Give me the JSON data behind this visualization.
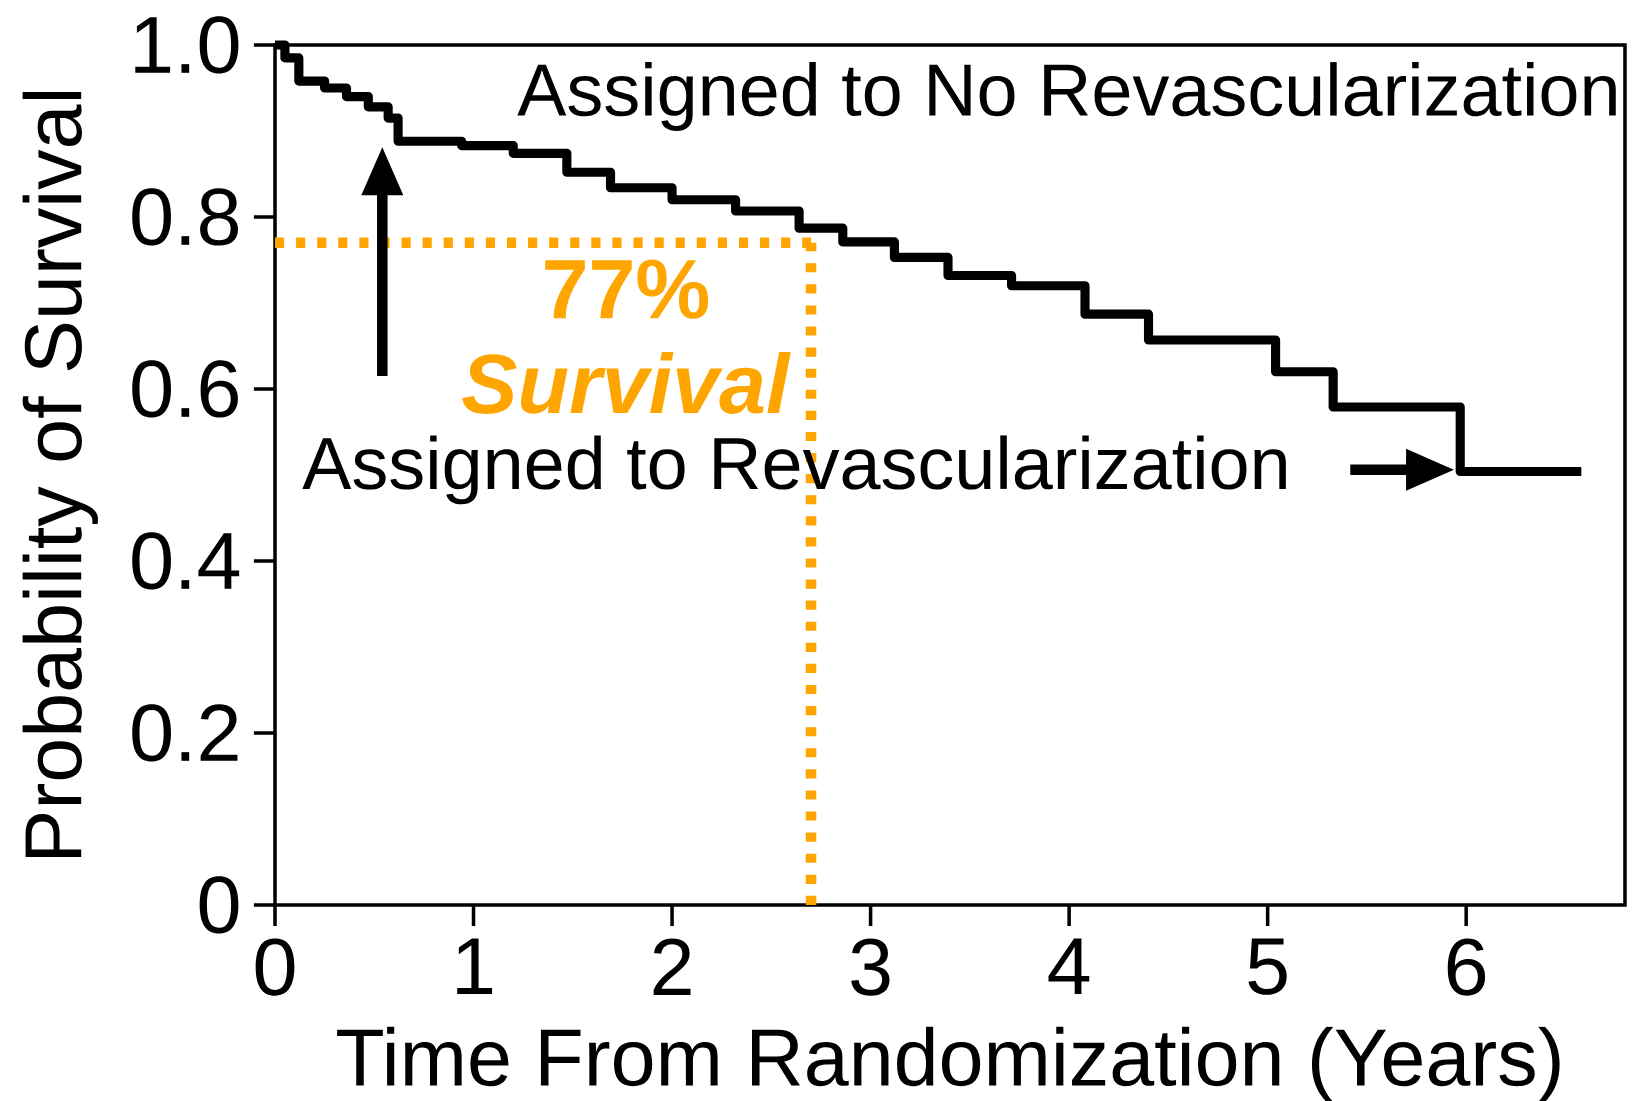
{
  "chart_data": {
    "type": "step",
    "xlabel": "Time From Randomization (Years)",
    "ylabel": "Probability of Survival",
    "xlim": [
      0,
      6.8
    ],
    "ylim": [
      0,
      1
    ],
    "xticks": [
      0,
      1,
      2,
      3,
      4,
      5,
      6
    ],
    "yticks": [
      0,
      0.2,
      0.4,
      0.6,
      {
        "value": 1,
        "label": "1.0"
      },
      0.8
    ],
    "series": [
      {
        "color": "#000000",
        "x": [
          0,
          0.05,
          0.12,
          0.25,
          0.36,
          0.47,
          0.57,
          0.62,
          0.94,
          1.2,
          1.47,
          1.69,
          2.0,
          2.32,
          2.64,
          2.86,
          3.12,
          3.39,
          3.71,
          4.08,
          4.4,
          5.04,
          5.33,
          5.97,
          6.58
        ],
        "values": [
          1.0,
          0.985,
          0.958,
          0.95,
          0.94,
          0.928,
          0.915,
          0.888,
          0.883,
          0.874,
          0.852,
          0.834,
          0.82,
          0.807,
          0.787,
          0.771,
          0.753,
          0.732,
          0.72,
          0.687,
          0.657,
          0.62,
          0.579,
          0.504,
          0.504
        ]
      }
    ],
    "ref_lines": [
      {
        "axis": "y",
        "value": 0.77,
        "color": "#ffa500",
        "line_style": "dotted"
      },
      {
        "axis": "x",
        "value": 2.7,
        "color": "#ffa500",
        "line_style": "dotted"
      }
    ],
    "annotations": [
      "Assigned to No Revascularization",
      "Assigned to Revascularization",
      "77% *Survival*"
    ]
  }
}
